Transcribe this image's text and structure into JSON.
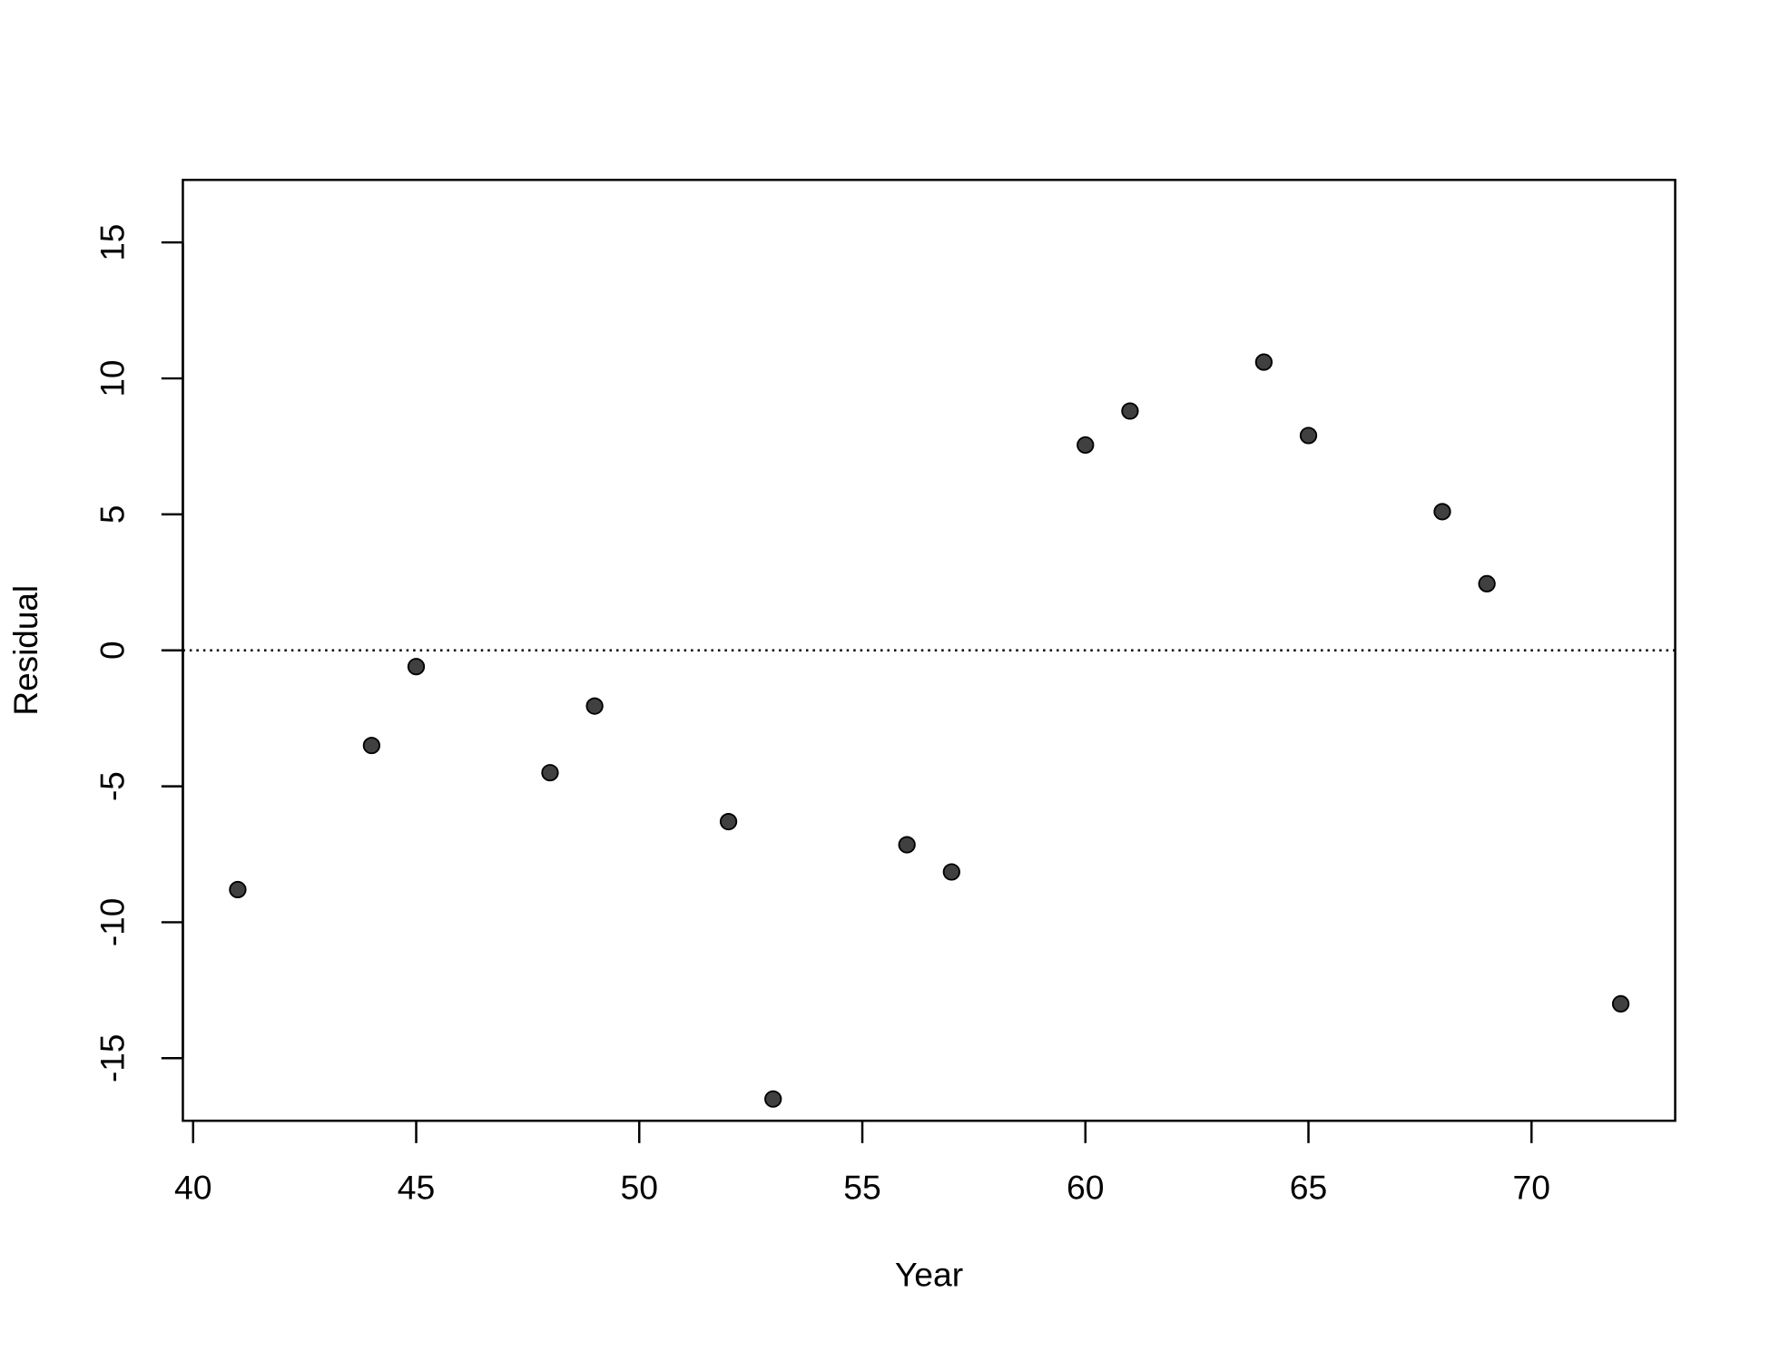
{
  "chart_data": {
    "type": "scatter",
    "x_label": "Year",
    "y_label": "Residual",
    "x": [
      41,
      44,
      45,
      48,
      49,
      52,
      53,
      56,
      57,
      60,
      61,
      64,
      65,
      68,
      69,
      72
    ],
    "values": [
      -8.8,
      -3.5,
      -0.6,
      -4.5,
      -2.05,
      -6.3,
      -16.5,
      -7.15,
      -8.15,
      7.55,
      8.8,
      10.6,
      7.9,
      5.1,
      2.45,
      -13.0
    ],
    "color": "#404040",
    "xlim": [
      39.77,
      73.22
    ],
    "xticks": [
      40,
      45,
      50,
      55,
      60,
      65,
      70
    ],
    "ylim": [
      -17.3,
      17.3
    ],
    "yticks": [
      -15,
      -10,
      -5,
      0,
      5,
      10,
      15
    ],
    "reference_line": 0
  }
}
